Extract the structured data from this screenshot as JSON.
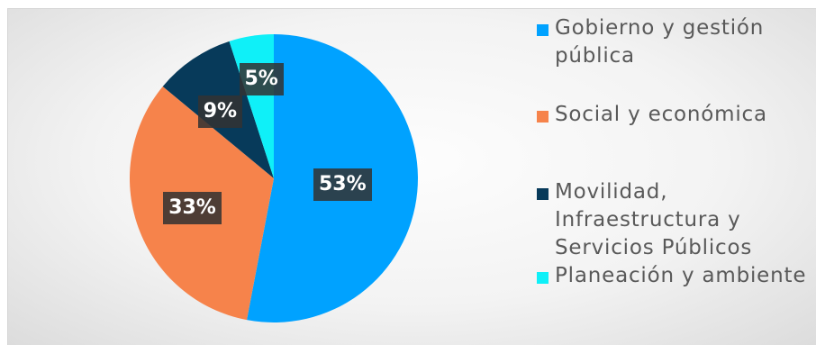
{
  "chart_data": {
    "type": "pie",
    "title": "",
    "categories": [
      "Gobierno y gestión pública",
      "Social y económica",
      "Movilidad, Infraestructura y Servicios Públicos",
      "Planeación y ambiente"
    ],
    "values": [
      53,
      33,
      9,
      5
    ],
    "value_labels": [
      "53%",
      "33%",
      "9%",
      "5%"
    ],
    "colors": [
      "#00a2ff",
      "#f6834b",
      "#073a5a",
      "#0ff0f8"
    ],
    "legend_position": "right",
    "start_angle": "12 o'clock",
    "direction": "clockwise"
  },
  "legend": {
    "items": [
      {
        "label": "Gobierno y gestión pública",
        "color": "#00a2ff"
      },
      {
        "label": "Social y económica",
        "color": "#f6834b"
      },
      {
        "label": "Movilidad, Infraestructura y Servicios Públicos",
        "color": "#073a5a"
      },
      {
        "label": "Planeación y ambiente",
        "color": "#0ff0f8"
      }
    ]
  }
}
